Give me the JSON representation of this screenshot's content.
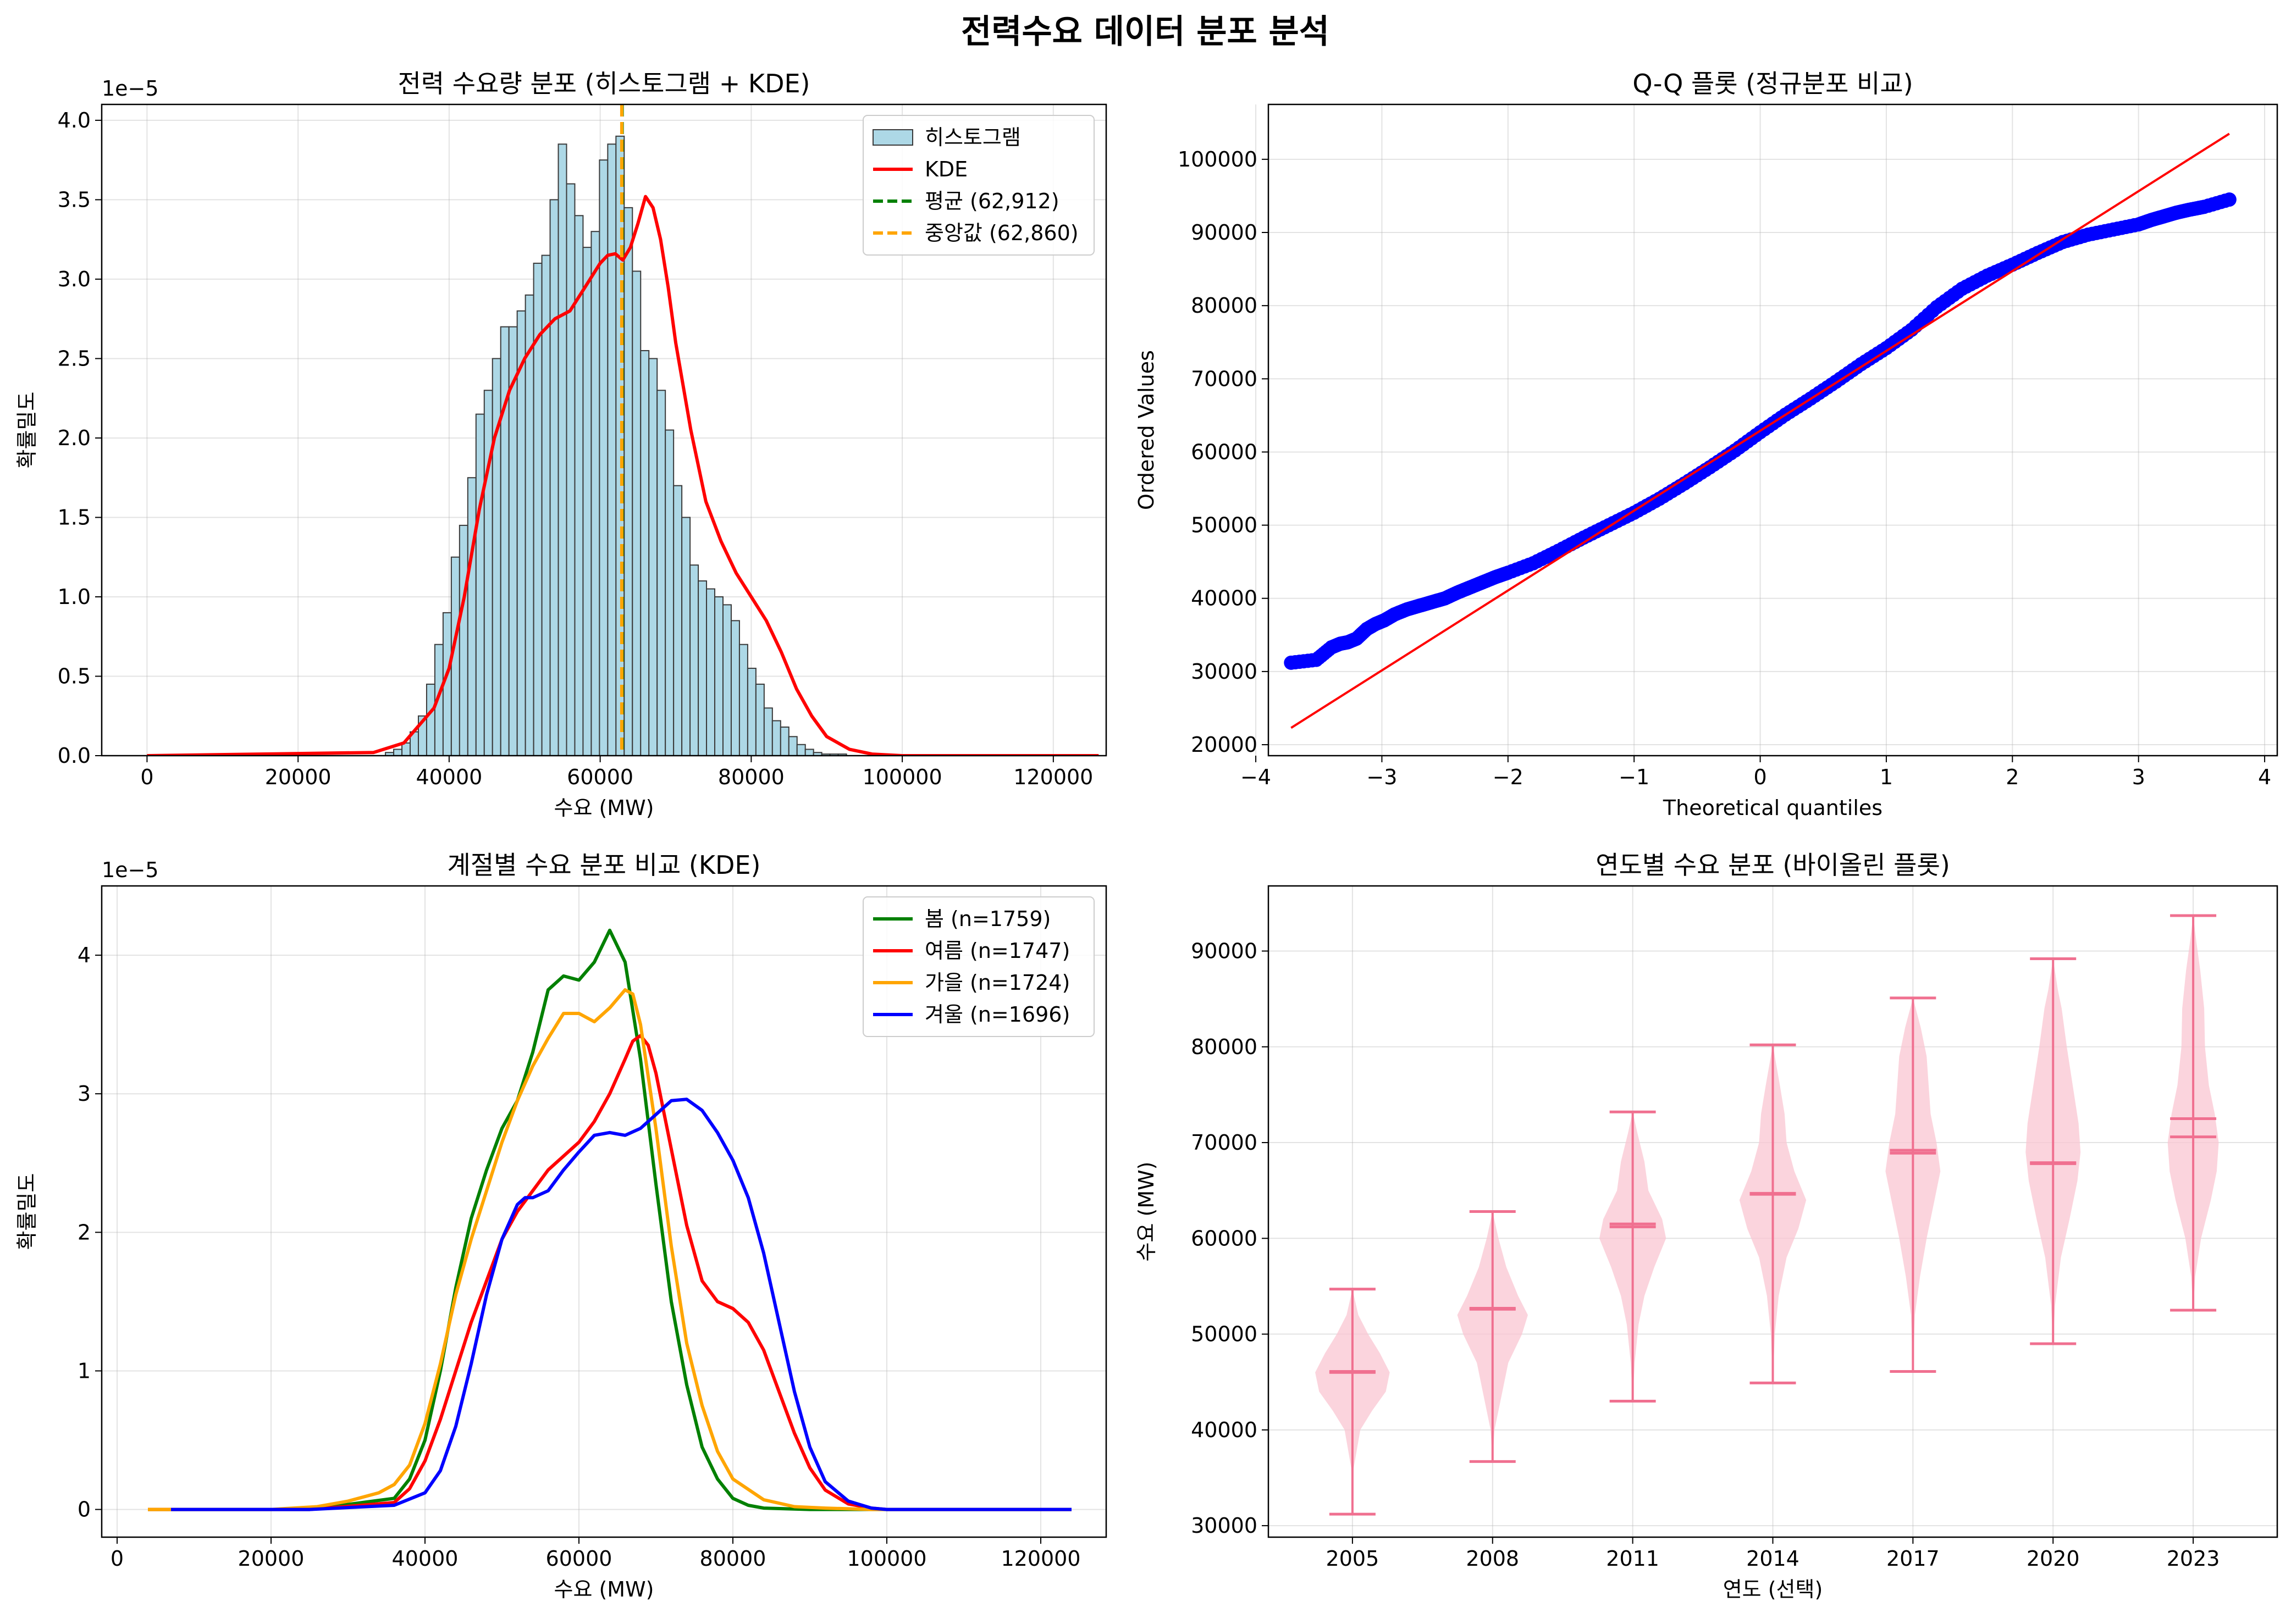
{
  "figure": {
    "title": "전력수요 데이터 분포 분석"
  },
  "chart_data": [
    {
      "type": "histogram",
      "title": "전력 수요량 분포 (히스토그램 + KDE)",
      "xlabel": "수요 (MW)",
      "ylabel": "확률밀도",
      "scale_label": "1e−5",
      "xlim": [
        -6000,
        127000
      ],
      "ylim": [
        0,
        4.1
      ],
      "x_ticks": [
        0,
        20000,
        40000,
        60000,
        80000,
        100000,
        120000
      ],
      "y_ticks": [
        0.0,
        0.5,
        1.0,
        1.5,
        2.0,
        2.5,
        3.0,
        3.5,
        4.0
      ],
      "grid": true,
      "legend_position": "top-right",
      "bin_width": 1090,
      "hist_color": "#add8e6",
      "hist_edge": "#3a3a3a",
      "histogram": {
        "name": "히스토그램",
        "bins_start": [
          31570,
          32660,
          33750,
          34840,
          35930,
          37020,
          38110,
          39200,
          40290,
          41380,
          42470,
          43560,
          44650,
          45740,
          46830,
          47920,
          49010,
          50100,
          51190,
          52280,
          53370,
          54460,
          55550,
          56640,
          57730,
          58820,
          59910,
          61000,
          62090,
          63180,
          64270,
          65360,
          66450,
          67540,
          68630,
          69720,
          70810,
          71900,
          72990,
          74080,
          75170,
          76260,
          77350,
          78440,
          79530,
          80620,
          81710,
          82800,
          83890,
          84980,
          86070,
          87160,
          88250,
          89340,
          90430,
          91520,
          92610,
          93700
        ],
        "densities": [
          0.02,
          0.04,
          0.08,
          0.15,
          0.25,
          0.45,
          0.7,
          0.9,
          1.25,
          1.45,
          1.75,
          2.15,
          2.3,
          2.5,
          2.7,
          2.7,
          2.8,
          2.9,
          3.1,
          3.15,
          3.5,
          3.85,
          3.6,
          3.4,
          3.2,
          3.3,
          3.75,
          3.85,
          3.9,
          3.45,
          3.05,
          2.55,
          2.5,
          2.3,
          2.05,
          1.7,
          1.5,
          1.2,
          1.1,
          1.05,
          1.0,
          0.95,
          0.85,
          0.7,
          0.55,
          0.45,
          0.3,
          0.22,
          0.18,
          0.12,
          0.07,
          0.04,
          0.02,
          0.01,
          0.01,
          0.01,
          0.0,
          0.0
        ]
      },
      "kde": {
        "name": "KDE",
        "color": "#ff0000",
        "x": [
          0,
          30000,
          34000,
          38000,
          40000,
          42000,
          44000,
          46000,
          48000,
          50000,
          52000,
          54000,
          56000,
          58000,
          60000,
          61000,
          62000,
          63000,
          64000,
          65000,
          66000,
          67000,
          68000,
          69000,
          70000,
          72000,
          74000,
          76000,
          78000,
          80000,
          82000,
          84000,
          86000,
          88000,
          90000,
          93000,
          96000,
          100000,
          126000
        ],
        "y": [
          0.0,
          0.02,
          0.08,
          0.3,
          0.55,
          1.0,
          1.55,
          2.0,
          2.3,
          2.5,
          2.65,
          2.75,
          2.8,
          2.95,
          3.1,
          3.15,
          3.16,
          3.12,
          3.2,
          3.35,
          3.52,
          3.45,
          3.25,
          2.95,
          2.6,
          2.05,
          1.6,
          1.35,
          1.15,
          1.0,
          0.85,
          0.65,
          0.42,
          0.25,
          0.12,
          0.04,
          0.01,
          0.0,
          0.0
        ]
      },
      "vlines": [
        {
          "name": "평균 (62,912)",
          "value": 62912,
          "color": "#008000"
        },
        {
          "name": "중앙값 (62,860)",
          "value": 62860,
          "color": "#ffa500"
        }
      ]
    },
    {
      "type": "scatter",
      "title": "Q-Q 플롯 (정규분포 비교)",
      "xlabel": "Theoretical quantiles",
      "ylabel": "Ordered Values",
      "xlim": [
        -3.9,
        4.1
      ],
      "ylim": [
        18500,
        107500
      ],
      "x_ticks": [
        -4,
        -3,
        -2,
        -1,
        0,
        1,
        2,
        3,
        4
      ],
      "y_ticks": [
        20000,
        30000,
        40000,
        50000,
        60000,
        70000,
        80000,
        90000,
        100000
      ],
      "grid": true,
      "point_color": "#0000ff",
      "line_color": "#ff0000",
      "reference_line": {
        "x": [
          -3.72,
          3.72
        ],
        "y": [
          22300,
          103500
        ]
      },
      "points": {
        "x": [
          -3.72,
          -3.52,
          -3.4,
          -3.33,
          -3.27,
          -3.2,
          -3.12,
          -3.05,
          -2.98,
          -2.9,
          -2.8,
          -2.7,
          -2.6,
          -2.5,
          -2.4,
          -2.3,
          -2.2,
          -2.1,
          -2.0,
          -1.8,
          -1.6,
          -1.4,
          -1.2,
          -1.0,
          -0.8,
          -0.6,
          -0.4,
          -0.2,
          0.0,
          0.2,
          0.4,
          0.6,
          0.8,
          1.0,
          1.2,
          1.4,
          1.6,
          1.8,
          2.0,
          2.2,
          2.4,
          2.6,
          2.8,
          3.0,
          3.1,
          3.2,
          3.3,
          3.4,
          3.52,
          3.72
        ],
        "y": [
          31200,
          31600,
          33300,
          33800,
          34000,
          34500,
          35800,
          36500,
          37000,
          37800,
          38500,
          39000,
          39500,
          40000,
          40800,
          41500,
          42200,
          42900,
          43500,
          44800,
          46500,
          48300,
          50000,
          51700,
          53600,
          55700,
          57900,
          60200,
          62700,
          65100,
          67300,
          69600,
          72000,
          74200,
          76700,
          79800,
          82300,
          84100,
          85600,
          87200,
          88700,
          89700,
          90400,
          91100,
          91700,
          92200,
          92700,
          93100,
          93500,
          94500
        ]
      }
    },
    {
      "type": "line",
      "title": "계절별 수요 분포 비교 (KDE)",
      "xlabel": "수요 (MW)",
      "ylabel": "확률밀도",
      "scale_label": "1e−5",
      "xlim": [
        -2000,
        128500
      ],
      "ylim": [
        -0.2,
        4.5
      ],
      "x_ticks": [
        0,
        20000,
        40000,
        60000,
        80000,
        100000,
        120000
      ],
      "y_ticks": [
        0,
        1,
        2,
        3,
        4
      ],
      "grid": true,
      "legend_position": "top-right",
      "series": [
        {
          "name": "봄 (n=1759)",
          "color": "#008000",
          "x": [
            4000,
            25000,
            36000,
            38000,
            40000,
            42000,
            44000,
            46000,
            48000,
            50000,
            52000,
            54000,
            56000,
            58000,
            60000,
            62000,
            64000,
            66000,
            68000,
            70000,
            72000,
            74000,
            76000,
            78000,
            80000,
            82000,
            84000,
            90000,
            124000
          ],
          "y": [
            0,
            0,
            0.08,
            0.22,
            0.5,
            1.0,
            1.6,
            2.1,
            2.45,
            2.75,
            2.95,
            3.3,
            3.75,
            3.85,
            3.82,
            3.95,
            4.18,
            3.95,
            3.25,
            2.35,
            1.5,
            0.9,
            0.45,
            0.22,
            0.08,
            0.03,
            0.01,
            0,
            0
          ]
        },
        {
          "name": "여름 (n=1747)",
          "color": "#ff0000",
          "x": [
            4000,
            25000,
            36000,
            38000,
            40000,
            42000,
            44000,
            46000,
            48000,
            50000,
            52000,
            54000,
            56000,
            58000,
            60000,
            62000,
            64000,
            66000,
            67000,
            68000,
            69000,
            70000,
            72000,
            74000,
            76000,
            78000,
            80000,
            82000,
            84000,
            86000,
            88000,
            90000,
            92000,
            95000,
            98000,
            100000,
            124000
          ],
          "y": [
            0,
            0,
            0.05,
            0.15,
            0.35,
            0.65,
            1.0,
            1.35,
            1.65,
            1.95,
            2.15,
            2.3,
            2.45,
            2.55,
            2.65,
            2.8,
            3.0,
            3.25,
            3.38,
            3.42,
            3.35,
            3.15,
            2.6,
            2.05,
            1.65,
            1.5,
            1.45,
            1.35,
            1.15,
            0.85,
            0.55,
            0.3,
            0.14,
            0.04,
            0.01,
            0,
            0
          ]
        },
        {
          "name": "가을 (n=1724)",
          "color": "#ffa500",
          "x": [
            4000,
            20000,
            26000,
            30000,
            34000,
            36000,
            38000,
            40000,
            42000,
            44000,
            46000,
            48000,
            50000,
            52000,
            54000,
            56000,
            58000,
            60000,
            62000,
            64000,
            66000,
            67000,
            68000,
            70000,
            72000,
            74000,
            76000,
            78000,
            80000,
            84000,
            88000,
            92000,
            98000,
            124000
          ],
          "y": [
            0,
            0,
            0.02,
            0.06,
            0.12,
            0.18,
            0.32,
            0.62,
            1.05,
            1.55,
            1.95,
            2.3,
            2.65,
            2.95,
            3.2,
            3.4,
            3.58,
            3.58,
            3.52,
            3.62,
            3.75,
            3.72,
            3.5,
            2.75,
            1.9,
            1.2,
            0.75,
            0.42,
            0.22,
            0.07,
            0.02,
            0.01,
            0,
            0
          ]
        },
        {
          "name": "겨울 (n=1696)",
          "color": "#0000ff",
          "x": [
            7000,
            25000,
            36000,
            40000,
            42000,
            44000,
            46000,
            48000,
            50000,
            52000,
            53000,
            54000,
            56000,
            58000,
            60000,
            62000,
            64000,
            66000,
            68000,
            70000,
            72000,
            74000,
            76000,
            78000,
            80000,
            82000,
            84000,
            86000,
            88000,
            90000,
            92000,
            95000,
            98000,
            100000,
            124000
          ],
          "y": [
            0,
            0,
            0.03,
            0.12,
            0.28,
            0.6,
            1.05,
            1.55,
            1.95,
            2.2,
            2.25,
            2.25,
            2.3,
            2.45,
            2.58,
            2.7,
            2.72,
            2.7,
            2.75,
            2.85,
            2.95,
            2.96,
            2.88,
            2.72,
            2.52,
            2.25,
            1.85,
            1.35,
            0.85,
            0.45,
            0.2,
            0.06,
            0.01,
            0,
            0
          ]
        }
      ]
    },
    {
      "type": "violin",
      "title": "연도별 수요 분포 (바이올린 플롯)",
      "xlabel": "연도 (선택)",
      "ylabel": "수요 (MW)",
      "xlim": [
        0.4,
        7.6
      ],
      "ylim": [
        28800,
        96800
      ],
      "y_ticks": [
        30000,
        40000,
        50000,
        60000,
        70000,
        80000,
        90000
      ],
      "categories": [
        "2005",
        "2008",
        "2011",
        "2014",
        "2017",
        "2020",
        "2023"
      ],
      "grid": true,
      "body_color": "#f9c5d1",
      "line_color": "#f07090",
      "violins": [
        {
          "year": "2005",
          "min": 31200,
          "max": 54700,
          "mean": 46000,
          "median": 46100,
          "y": [
            31200,
            36000,
            40000,
            42000,
            44000,
            46000,
            48000,
            50000,
            52000,
            54700
          ],
          "w": [
            0.0,
            0.03,
            0.2,
            0.5,
            0.85,
            0.95,
            0.7,
            0.4,
            0.15,
            0.0
          ]
        },
        {
          "year": "2008",
          "min": 36700,
          "max": 62800,
          "mean": 52600,
          "median": 52700,
          "y": [
            36700,
            40000,
            44000,
            47000,
            50000,
            52000,
            54000,
            57000,
            60000,
            62800
          ],
          "w": [
            0.0,
            0.05,
            0.25,
            0.4,
            0.75,
            0.9,
            0.65,
            0.35,
            0.15,
            0.0
          ]
        },
        {
          "year": "2011",
          "min": 43000,
          "max": 73200,
          "mean": 61500,
          "median": 61200,
          "y": [
            43000,
            47000,
            51000,
            54000,
            57000,
            60000,
            62000,
            65000,
            68000,
            71000,
            73200
          ],
          "w": [
            0.0,
            0.05,
            0.15,
            0.3,
            0.55,
            0.85,
            0.75,
            0.4,
            0.3,
            0.12,
            0.0
          ]
        },
        {
          "year": "2014",
          "min": 44900,
          "max": 80200,
          "mean": 64600,
          "median": 64700,
          "y": [
            44900,
            50000,
            54000,
            58000,
            61000,
            64000,
            67000,
            70000,
            73000,
            76000,
            80200
          ],
          "w": [
            0.0,
            0.05,
            0.15,
            0.35,
            0.65,
            0.85,
            0.55,
            0.35,
            0.3,
            0.18,
            0.0
          ]
        },
        {
          "year": "2017",
          "min": 46100,
          "max": 85100,
          "mean": 69200,
          "median": 68900,
          "y": [
            46100,
            52000,
            56000,
            60000,
            64000,
            67000,
            70000,
            73000,
            76000,
            79000,
            82000,
            85100
          ],
          "w": [
            0.0,
            0.05,
            0.18,
            0.35,
            0.55,
            0.7,
            0.6,
            0.45,
            0.4,
            0.35,
            0.2,
            0.0
          ]
        },
        {
          "year": "2020",
          "min": 49000,
          "max": 89200,
          "mean": 67900,
          "median": 67800,
          "y": [
            49000,
            53000,
            58000,
            62000,
            66000,
            69000,
            72000,
            76000,
            80000,
            84000,
            86000,
            89200
          ],
          "w": [
            0.0,
            0.05,
            0.2,
            0.42,
            0.62,
            0.7,
            0.65,
            0.5,
            0.35,
            0.22,
            0.12,
            0.0
          ]
        },
        {
          "year": "2023",
          "min": 52500,
          "max": 93700,
          "mean": 72500,
          "median": 70600,
          "y": [
            52500,
            56000,
            60000,
            64000,
            67000,
            70000,
            73000,
            76000,
            80000,
            84000,
            88000,
            91000,
            93700
          ],
          "w": [
            0.0,
            0.05,
            0.2,
            0.45,
            0.6,
            0.65,
            0.55,
            0.4,
            0.3,
            0.28,
            0.18,
            0.08,
            0.0
          ]
        }
      ]
    }
  ]
}
